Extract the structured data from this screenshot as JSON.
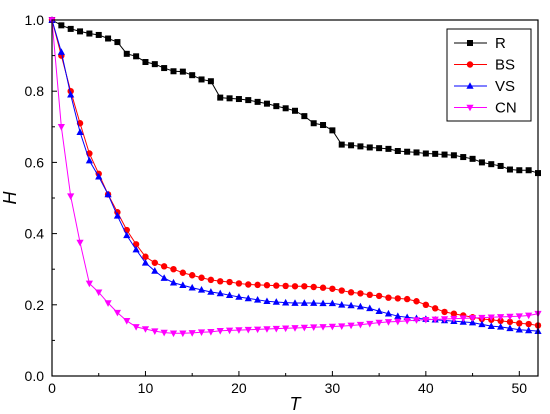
{
  "chart_data": {
    "type": "line",
    "title": "",
    "xlabel": "T",
    "ylabel": "H",
    "xlim": [
      0,
      52
    ],
    "ylim": [
      0.0,
      1.0
    ],
    "x_ticks": [
      0,
      10,
      20,
      30,
      40,
      50
    ],
    "y_ticks": [
      0.0,
      0.2,
      0.4,
      0.6,
      0.8,
      1.0
    ],
    "y_tick_labels": [
      "0.0",
      "0.2",
      "0.4",
      "0.6",
      "0.8",
      "1.0"
    ],
    "grid": false,
    "legend_position": "top-right",
    "x": [
      0,
      1,
      2,
      3,
      4,
      5,
      6,
      7,
      8,
      9,
      10,
      11,
      12,
      13,
      14,
      15,
      16,
      17,
      18,
      19,
      20,
      21,
      22,
      23,
      24,
      25,
      26,
      27,
      28,
      29,
      30,
      31,
      32,
      33,
      34,
      35,
      36,
      37,
      38,
      39,
      40,
      41,
      42,
      43,
      44,
      45,
      46,
      47,
      48,
      49,
      50,
      51,
      52
    ],
    "series": [
      {
        "name": "R",
        "color": "#000000",
        "marker": "square",
        "values": [
          1.0,
          0.985,
          0.975,
          0.968,
          0.962,
          0.958,
          0.948,
          0.938,
          0.905,
          0.898,
          0.882,
          0.876,
          0.865,
          0.856,
          0.855,
          0.845,
          0.833,
          0.828,
          0.782,
          0.78,
          0.778,
          0.775,
          0.77,
          0.765,
          0.758,
          0.752,
          0.745,
          0.73,
          0.71,
          0.705,
          0.69,
          0.65,
          0.648,
          0.645,
          0.642,
          0.64,
          0.638,
          0.632,
          0.63,
          0.628,
          0.625,
          0.624,
          0.622,
          0.62,
          0.615,
          0.61,
          0.6,
          0.595,
          0.59,
          0.58,
          0.578,
          0.578,
          0.57
        ]
      },
      {
        "name": "BS",
        "color": "#ff0000",
        "marker": "circle",
        "values": [
          1.0,
          0.9,
          0.8,
          0.71,
          0.625,
          0.568,
          0.51,
          0.46,
          0.41,
          0.37,
          0.335,
          0.318,
          0.308,
          0.3,
          0.29,
          0.283,
          0.276,
          0.27,
          0.266,
          0.264,
          0.26,
          0.257,
          0.256,
          0.255,
          0.254,
          0.253,
          0.252,
          0.252,
          0.25,
          0.248,
          0.245,
          0.24,
          0.235,
          0.232,
          0.228,
          0.225,
          0.22,
          0.218,
          0.216,
          0.21,
          0.2,
          0.19,
          0.18,
          0.175,
          0.17,
          0.165,
          0.16,
          0.158,
          0.155,
          0.152,
          0.148,
          0.146,
          0.142
        ]
      },
      {
        "name": "VS",
        "color": "#0000ff",
        "marker": "triangle-up",
        "values": [
          1.0,
          0.91,
          0.79,
          0.685,
          0.605,
          0.56,
          0.51,
          0.45,
          0.395,
          0.355,
          0.318,
          0.295,
          0.275,
          0.262,
          0.255,
          0.248,
          0.242,
          0.236,
          0.232,
          0.227,
          0.222,
          0.218,
          0.214,
          0.21,
          0.208,
          0.206,
          0.205,
          0.205,
          0.205,
          0.204,
          0.204,
          0.2,
          0.198,
          0.195,
          0.19,
          0.182,
          0.175,
          0.168,
          0.165,
          0.162,
          0.16,
          0.158,
          0.156,
          0.154,
          0.152,
          0.15,
          0.145,
          0.14,
          0.138,
          0.134,
          0.13,
          0.128,
          0.126
        ]
      },
      {
        "name": "CN",
        "color": "#ff00ff",
        "marker": "triangle-down",
        "values": [
          1.0,
          0.7,
          0.505,
          0.375,
          0.26,
          0.235,
          0.205,
          0.178,
          0.155,
          0.138,
          0.132,
          0.126,
          0.122,
          0.12,
          0.12,
          0.121,
          0.123,
          0.124,
          0.127,
          0.128,
          0.129,
          0.13,
          0.131,
          0.132,
          0.133,
          0.134,
          0.135,
          0.136,
          0.137,
          0.138,
          0.139,
          0.14,
          0.142,
          0.144,
          0.147,
          0.15,
          0.152,
          0.153,
          0.155,
          0.157,
          0.158,
          0.159,
          0.16,
          0.161,
          0.162,
          0.163,
          0.164,
          0.165,
          0.166,
          0.167,
          0.168,
          0.17,
          0.175
        ]
      }
    ]
  }
}
